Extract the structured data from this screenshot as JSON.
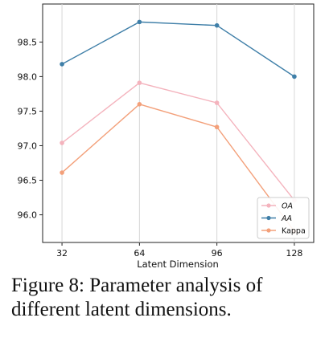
{
  "caption": "Figure 8: Parameter analysis of different latent dimensions.",
  "chart_data": {
    "type": "line",
    "xlabel": "Latent Dimension",
    "ylabel": "",
    "title": "",
    "x": [
      32,
      64,
      96,
      128
    ],
    "x_ticks": [
      "32",
      "64",
      "96",
      "128"
    ],
    "y_ticks": [
      "96.0",
      "96.5",
      "97.0",
      "97.5",
      "98.0",
      "98.5"
    ],
    "y_tick_values": [
      96.0,
      96.5,
      97.0,
      97.5,
      98.0,
      98.5
    ],
    "ylim": [
      95.6,
      99.05
    ],
    "xlim": [
      24,
      136
    ],
    "grid": "vertical",
    "legend_position": "bottom-right",
    "series": [
      {
        "name": "OA",
        "color": "#f4b3bd",
        "values": [
          97.04,
          97.91,
          97.62,
          96.21
        ]
      },
      {
        "name": "AA",
        "color": "#3f7fa8",
        "values": [
          98.18,
          98.79,
          98.74,
          98.0
        ]
      },
      {
        "name": "Kappa",
        "color": "#f3a07a",
        "values": [
          96.61,
          97.6,
          97.27,
          95.76
        ]
      }
    ]
  }
}
